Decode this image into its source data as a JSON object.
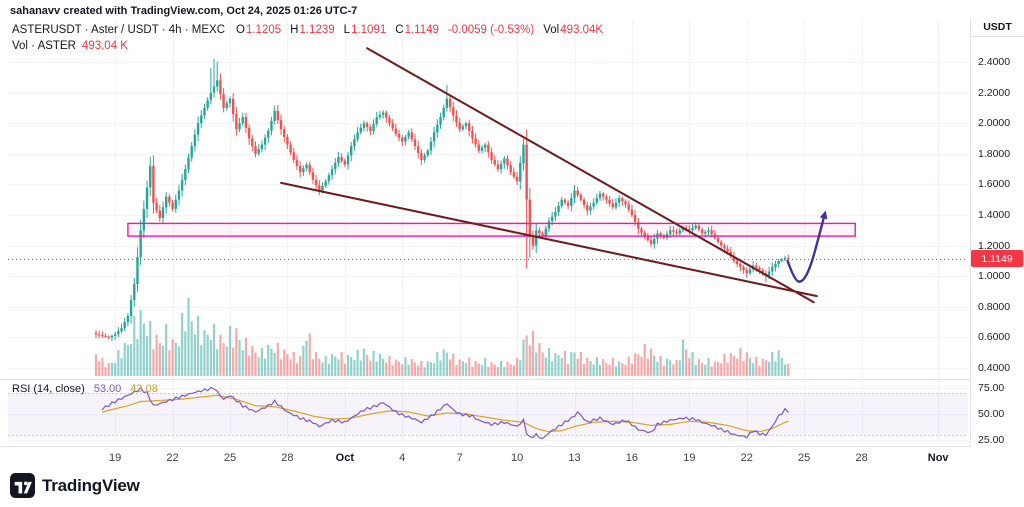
{
  "attribution": "sahanavv created with TradingView.com, Oct 24, 2025 01:26 UTC-7",
  "header": {
    "title": "ASTERUSDT · Aster / USDT · 4h · MEXC",
    "ohlc": {
      "o_label": "O",
      "o": "1.1205",
      "h_label": "H",
      "h": "1.1239",
      "l_label": "L",
      "l": "1.1091",
      "c_label": "C",
      "c": "1.1149",
      "change": "-0.0059 (-0.53%)",
      "vol_label": "Vol",
      "vol": "493.04K"
    },
    "vol_line": {
      "label": "Vol · ASTER",
      "value": "493.04 K"
    }
  },
  "rsi_header": {
    "label": "RSI (14, close)",
    "value": "53.00",
    "ma_value": "43.08"
  },
  "axes": {
    "price_unit": "USDT",
    "price_ticks": [
      "2.4000",
      "2.2000",
      "2.0000",
      "1.8000",
      "1.6000",
      "1.4000",
      "1.2000",
      "1.0000",
      "0.8000",
      "0.6000",
      "0.4000"
    ],
    "rsi_ticks": [
      "75.00",
      "50.00",
      "25.00"
    ],
    "last_price": "1.1149"
  },
  "footer": {
    "brand": "TradingView"
  },
  "colors": {
    "up": "#26a69a",
    "down": "#ef5350",
    "vol_up": "rgba(38,166,154,0.5)",
    "vol_down": "rgba(239,83,80,0.5)",
    "trendline": "#6d1b1b",
    "box": "#e91e9c",
    "box_fill": "rgba(233,30,156,0.05)",
    "arrow": "#41319f",
    "rsi": "#7e57c2",
    "rsi_ma": "#d9a521",
    "rsi_band_fill": "rgba(126,87,194,0.07)",
    "rsi_band_line": "#cfc3e8",
    "last_price": "#f23645",
    "grid": "#f0f3fa",
    "axis_border": "#e0e3eb",
    "text": "#131722"
  },
  "chart_data": {
    "type": "candlestick",
    "symbol": "ASTERUSDT",
    "exchange": "MEXC",
    "interval": "4h",
    "price_axis": {
      "min": 0.4,
      "max": 2.4,
      "tick_step": 0.2,
      "unit": "USDT"
    },
    "ohlc_current": {
      "open": 1.1205,
      "high": 1.1239,
      "low": 1.1091,
      "close": 1.1149,
      "change": -0.0059,
      "change_pct": -0.53,
      "volume": "493.04K"
    },
    "last_price": 1.1149,
    "candles_per_day": 6,
    "num_candles": 218,
    "close_anchors": [
      [
        0,
        0.62
      ],
      [
        2,
        0.61
      ],
      [
        4,
        0.6
      ],
      [
        6,
        0.62
      ],
      [
        8,
        0.66
      ],
      [
        10,
        0.74
      ],
      [
        12,
        0.95
      ],
      [
        14,
        1.3
      ],
      [
        16,
        1.58
      ],
      [
        17,
        1.72
      ],
      [
        18,
        1.48
      ],
      [
        20,
        1.38
      ],
      [
        22,
        1.52
      ],
      [
        24,
        1.44
      ],
      [
        26,
        1.56
      ],
      [
        28,
        1.7
      ],
      [
        30,
        1.85
      ],
      [
        32,
        2.0
      ],
      [
        34,
        2.1
      ],
      [
        36,
        2.2
      ],
      [
        38,
        2.28
      ],
      [
        40,
        2.1
      ],
      [
        42,
        2.16
      ],
      [
        44,
        1.96
      ],
      [
        46,
        2.04
      ],
      [
        48,
        1.9
      ],
      [
        50,
        1.8
      ],
      [
        52,
        1.86
      ],
      [
        54,
        1.95
      ],
      [
        56,
        2.08
      ],
      [
        58,
        1.96
      ],
      [
        60,
        1.86
      ],
      [
        62,
        1.76
      ],
      [
        64,
        1.68
      ],
      [
        66,
        1.73
      ],
      [
        68,
        1.63
      ],
      [
        70,
        1.56
      ],
      [
        72,
        1.62
      ],
      [
        74,
        1.7
      ],
      [
        76,
        1.78
      ],
      [
        78,
        1.73
      ],
      [
        80,
        1.85
      ],
      [
        82,
        1.94
      ],
      [
        84,
        2.0
      ],
      [
        86,
        1.95
      ],
      [
        88,
        2.04
      ],
      [
        90,
        2.07
      ],
      [
        92,
        2.0
      ],
      [
        94,
        1.93
      ],
      [
        96,
        1.88
      ],
      [
        98,
        1.94
      ],
      [
        100,
        1.85
      ],
      [
        102,
        1.76
      ],
      [
        104,
        1.82
      ],
      [
        106,
        1.94
      ],
      [
        108,
        2.04
      ],
      [
        110,
        2.16
      ],
      [
        112,
        2.05
      ],
      [
        114,
        1.96
      ],
      [
        116,
        2.0
      ],
      [
        118,
        1.9
      ],
      [
        120,
        1.82
      ],
      [
        122,
        1.86
      ],
      [
        124,
        1.76
      ],
      [
        126,
        1.7
      ],
      [
        128,
        1.77
      ],
      [
        130,
        1.68
      ],
      [
        132,
        1.62
      ],
      [
        134,
        1.86
      ],
      [
        135,
        1.5
      ],
      [
        136,
        1.26
      ],
      [
        137,
        1.2
      ],
      [
        138,
        1.3
      ],
      [
        140,
        1.26
      ],
      [
        142,
        1.36
      ],
      [
        144,
        1.42
      ],
      [
        146,
        1.5
      ],
      [
        148,
        1.46
      ],
      [
        150,
        1.56
      ],
      [
        152,
        1.5
      ],
      [
        154,
        1.43
      ],
      [
        156,
        1.48
      ],
      [
        158,
        1.54
      ],
      [
        160,
        1.5
      ],
      [
        162,
        1.45
      ],
      [
        164,
        1.51
      ],
      [
        166,
        1.47
      ],
      [
        168,
        1.4
      ],
      [
        170,
        1.31
      ],
      [
        172,
        1.26
      ],
      [
        174,
        1.21
      ],
      [
        176,
        1.28
      ],
      [
        178,
        1.25
      ],
      [
        180,
        1.3
      ],
      [
        182,
        1.28
      ],
      [
        184,
        1.32
      ],
      [
        186,
        1.3
      ],
      [
        188,
        1.33
      ],
      [
        190,
        1.28
      ],
      [
        192,
        1.3
      ],
      [
        194,
        1.25
      ],
      [
        196,
        1.2
      ],
      [
        198,
        1.16
      ],
      [
        200,
        1.1
      ],
      [
        202,
        1.06
      ],
      [
        204,
        1.02
      ],
      [
        206,
        1.07
      ],
      [
        208,
        1.04
      ],
      [
        210,
        1.0
      ],
      [
        212,
        1.06
      ],
      [
        214,
        1.1
      ],
      [
        216,
        1.12
      ],
      [
        217,
        1.1149
      ]
    ],
    "wick_overrides": {
      "17": {
        "high": 1.78
      },
      "36": {
        "high": 2.36
      },
      "37": {
        "high": 2.42
      },
      "38": {
        "high": 2.4
      },
      "110": {
        "high": 2.25
      },
      "135": {
        "low": 1.05
      },
      "136": {
        "low": 1.12
      },
      "204": {
        "low": 0.99
      },
      "210": {
        "low": 0.96
      }
    },
    "volume_rel_anchors": [
      [
        0,
        0.28
      ],
      [
        2,
        0.18
      ],
      [
        4,
        0.14
      ],
      [
        6,
        0.2
      ],
      [
        8,
        0.32
      ],
      [
        10,
        0.4
      ],
      [
        12,
        0.6
      ],
      [
        14,
        0.72
      ],
      [
        16,
        0.62
      ],
      [
        18,
        0.48
      ],
      [
        20,
        0.42
      ],
      [
        22,
        0.52
      ],
      [
        24,
        0.4
      ],
      [
        26,
        0.46
      ],
      [
        28,
        0.8
      ],
      [
        29,
        1.0
      ],
      [
        30,
        0.7
      ],
      [
        32,
        0.6
      ],
      [
        34,
        0.5
      ],
      [
        36,
        0.56
      ],
      [
        38,
        0.48
      ],
      [
        40,
        0.42
      ],
      [
        42,
        0.5
      ],
      [
        44,
        0.52
      ],
      [
        46,
        0.4
      ],
      [
        48,
        0.36
      ],
      [
        50,
        0.3
      ],
      [
        52,
        0.28
      ],
      [
        54,
        0.34
      ],
      [
        56,
        0.36
      ],
      [
        58,
        0.3
      ],
      [
        60,
        0.28
      ],
      [
        62,
        0.24
      ],
      [
        64,
        0.22
      ],
      [
        66,
        0.55
      ],
      [
        68,
        0.3
      ],
      [
        70,
        0.22
      ],
      [
        72,
        0.2
      ],
      [
        74,
        0.24
      ],
      [
        76,
        0.26
      ],
      [
        78,
        0.22
      ],
      [
        80,
        0.24
      ],
      [
        82,
        0.26
      ],
      [
        84,
        0.3
      ],
      [
        86,
        0.24
      ],
      [
        88,
        0.26
      ],
      [
        90,
        0.22
      ],
      [
        92,
        0.2
      ],
      [
        94,
        0.18
      ],
      [
        96,
        0.18
      ],
      [
        98,
        0.2
      ],
      [
        100,
        0.17
      ],
      [
        102,
        0.15
      ],
      [
        104,
        0.16
      ],
      [
        106,
        0.2
      ],
      [
        108,
        0.28
      ],
      [
        110,
        0.3
      ],
      [
        112,
        0.22
      ],
      [
        114,
        0.18
      ],
      [
        116,
        0.2
      ],
      [
        118,
        0.17
      ],
      [
        120,
        0.16
      ],
      [
        122,
        0.18
      ],
      [
        124,
        0.15
      ],
      [
        126,
        0.14
      ],
      [
        128,
        0.16
      ],
      [
        130,
        0.15
      ],
      [
        132,
        0.18
      ],
      [
        134,
        0.4
      ],
      [
        135,
        0.52
      ],
      [
        136,
        0.48
      ],
      [
        138,
        0.42
      ],
      [
        140,
        0.3
      ],
      [
        142,
        0.28
      ],
      [
        144,
        0.25
      ],
      [
        146,
        0.28
      ],
      [
        148,
        0.22
      ],
      [
        150,
        0.3
      ],
      [
        152,
        0.24
      ],
      [
        154,
        0.2
      ],
      [
        156,
        0.18
      ],
      [
        158,
        0.2
      ],
      [
        160,
        0.17
      ],
      [
        162,
        0.18
      ],
      [
        164,
        0.16
      ],
      [
        166,
        0.17
      ],
      [
        168,
        0.22
      ],
      [
        170,
        0.28
      ],
      [
        172,
        0.32
      ],
      [
        174,
        0.3
      ],
      [
        176,
        0.22
      ],
      [
        178,
        0.18
      ],
      [
        180,
        0.2
      ],
      [
        182,
        0.16
      ],
      [
        184,
        0.4
      ],
      [
        186,
        0.28
      ],
      [
        188,
        0.2
      ],
      [
        190,
        0.17
      ],
      [
        192,
        0.18
      ],
      [
        194,
        0.16
      ],
      [
        196,
        0.2
      ],
      [
        198,
        0.24
      ],
      [
        200,
        0.26
      ],
      [
        202,
        0.28
      ],
      [
        204,
        0.26
      ],
      [
        206,
        0.2
      ],
      [
        208,
        0.18
      ],
      [
        210,
        0.2
      ],
      [
        212,
        0.24
      ],
      [
        214,
        0.28
      ],
      [
        216,
        0.18
      ],
      [
        217,
        0.12
      ]
    ],
    "rsi": {
      "label": "RSI (14, close)",
      "value": 53.0,
      "ma_value": 43.08,
      "ticks": [
        75,
        50,
        25
      ],
      "band": [
        30,
        70
      ],
      "anchors": [
        [
          2,
          55
        ],
        [
          6,
          62
        ],
        [
          10,
          68
        ],
        [
          14,
          74
        ],
        [
          16,
          70
        ],
        [
          18,
          58
        ],
        [
          22,
          62
        ],
        [
          26,
          66
        ],
        [
          30,
          70
        ],
        [
          34,
          73
        ],
        [
          37,
          75
        ],
        [
          40,
          64
        ],
        [
          42,
          68
        ],
        [
          46,
          58
        ],
        [
          50,
          52
        ],
        [
          54,
          58
        ],
        [
          56,
          62
        ],
        [
          60,
          52
        ],
        [
          64,
          46
        ],
        [
          68,
          42
        ],
        [
          70,
          38
        ],
        [
          74,
          44
        ],
        [
          78,
          42
        ],
        [
          82,
          50
        ],
        [
          84,
          54
        ],
        [
          88,
          58
        ],
        [
          90,
          61
        ],
        [
          94,
          52
        ],
        [
          96,
          49
        ],
        [
          100,
          45
        ],
        [
          102,
          42
        ],
        [
          106,
          50
        ],
        [
          110,
          60
        ],
        [
          112,
          54
        ],
        [
          114,
          50
        ],
        [
          118,
          48
        ],
        [
          120,
          44
        ],
        [
          124,
          40
        ],
        [
          128,
          42
        ],
        [
          132,
          38
        ],
        [
          134,
          44
        ],
        [
          135,
          32
        ],
        [
          136,
          27
        ],
        [
          138,
          30
        ],
        [
          140,
          26
        ],
        [
          142,
          32
        ],
        [
          146,
          40
        ],
        [
          150,
          48
        ],
        [
          151,
          52
        ],
        [
          154,
          42
        ],
        [
          158,
          46
        ],
        [
          162,
          40
        ],
        [
          166,
          44
        ],
        [
          168,
          40
        ],
        [
          170,
          35
        ],
        [
          174,
          32
        ],
        [
          176,
          40
        ],
        [
          180,
          44
        ],
        [
          184,
          46
        ],
        [
          188,
          45
        ],
        [
          190,
          42
        ],
        [
          194,
          38
        ],
        [
          196,
          35
        ],
        [
          198,
          33
        ],
        [
          200,
          30
        ],
        [
          202,
          29
        ],
        [
          204,
          28
        ],
        [
          206,
          34
        ],
        [
          208,
          31
        ],
        [
          210,
          30
        ],
        [
          212,
          38
        ],
        [
          214,
          48
        ],
        [
          216,
          54
        ],
        [
          217,
          53
        ]
      ],
      "ma_anchors": [
        [
          2,
          52
        ],
        [
          10,
          58
        ],
        [
          14,
          62
        ],
        [
          20,
          63
        ],
        [
          26,
          64
        ],
        [
          32,
          66
        ],
        [
          38,
          68
        ],
        [
          44,
          64
        ],
        [
          50,
          58
        ],
        [
          56,
          57
        ],
        [
          62,
          53
        ],
        [
          68,
          48
        ],
        [
          74,
          45
        ],
        [
          80,
          46
        ],
        [
          86,
          50
        ],
        [
          92,
          53
        ],
        [
          98,
          52
        ],
        [
          104,
          48
        ],
        [
          110,
          51
        ],
        [
          116,
          50
        ],
        [
          122,
          47
        ],
        [
          128,
          44
        ],
        [
          134,
          42
        ],
        [
          138,
          36
        ],
        [
          142,
          33
        ],
        [
          146,
          34
        ],
        [
          150,
          38
        ],
        [
          156,
          42
        ],
        [
          162,
          43
        ],
        [
          168,
          42
        ],
        [
          174,
          39
        ],
        [
          180,
          40
        ],
        [
          186,
          43
        ],
        [
          192,
          42
        ],
        [
          198,
          39
        ],
        [
          204,
          34
        ],
        [
          208,
          33
        ],
        [
          212,
          36
        ],
        [
          216,
          42
        ],
        [
          217,
          43
        ]
      ]
    },
    "overlays": {
      "trendlines": [
        {
          "from_idx": 85,
          "from_price": 2.49,
          "to_idx": 225,
          "to_price": 0.83
        },
        {
          "from_idx": 58,
          "from_price": 1.61,
          "to_idx": 226,
          "to_price": 0.87
        }
      ],
      "resistance_box": {
        "from_idx": 10,
        "to_idx": 238,
        "top_price": 1.345,
        "bottom_price": 1.262
      },
      "projection_arrow": [
        [
          216.8,
          1.1
        ],
        [
          219.0,
          0.97
        ],
        [
          221.5,
          0.96
        ],
        [
          224.0,
          1.06
        ],
        [
          226.5,
          1.25
        ],
        [
          228.5,
          1.41
        ]
      ]
    },
    "time_ticks": [
      {
        "label": "19",
        "d": 1
      },
      {
        "label": "22",
        "d": 4
      },
      {
        "label": "25",
        "d": 7
      },
      {
        "label": "28",
        "d": 10
      },
      {
        "label": "Oct",
        "d": 13,
        "major": true
      },
      {
        "label": "4",
        "d": 16
      },
      {
        "label": "7",
        "d": 19
      },
      {
        "label": "10",
        "d": 22
      },
      {
        "label": "13",
        "d": 25
      },
      {
        "label": "16",
        "d": 28
      },
      {
        "label": "19",
        "d": 31
      },
      {
        "label": "22",
        "d": 34
      },
      {
        "label": "25",
        "d": 37
      },
      {
        "label": "28",
        "d": 40
      },
      {
        "label": "Nov",
        "d": 44,
        "major": true
      }
    ]
  }
}
